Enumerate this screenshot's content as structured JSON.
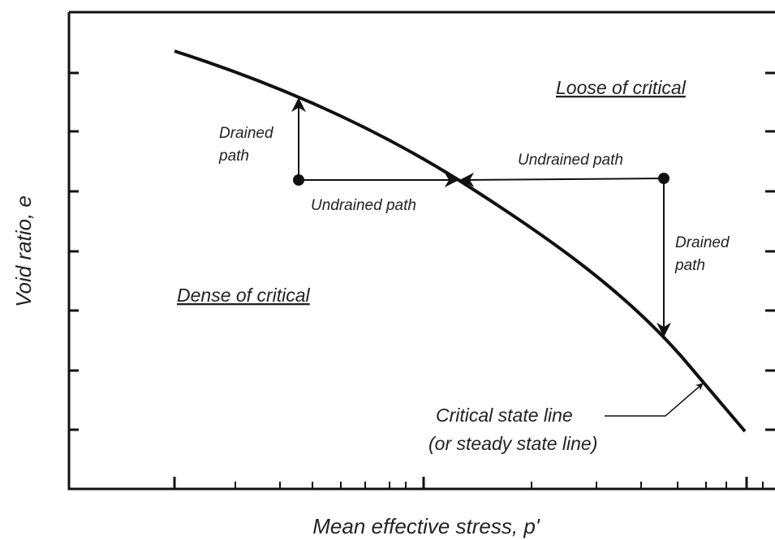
{
  "axes": {
    "y_label": "Void ratio, e",
    "x_label": "Mean effective stress, p'"
  },
  "regions": {
    "loose": "Loose of critical",
    "dense": "Dense of critical"
  },
  "paths": {
    "drained_left": [
      "Drained",
      "path"
    ],
    "undrained_left": "Undrained path",
    "undrained_right": "Undrained path",
    "drained_right": [
      "Drained",
      "path"
    ]
  },
  "critical_line": [
    "Critical state line",
    "(or steady state line)"
  ]
}
